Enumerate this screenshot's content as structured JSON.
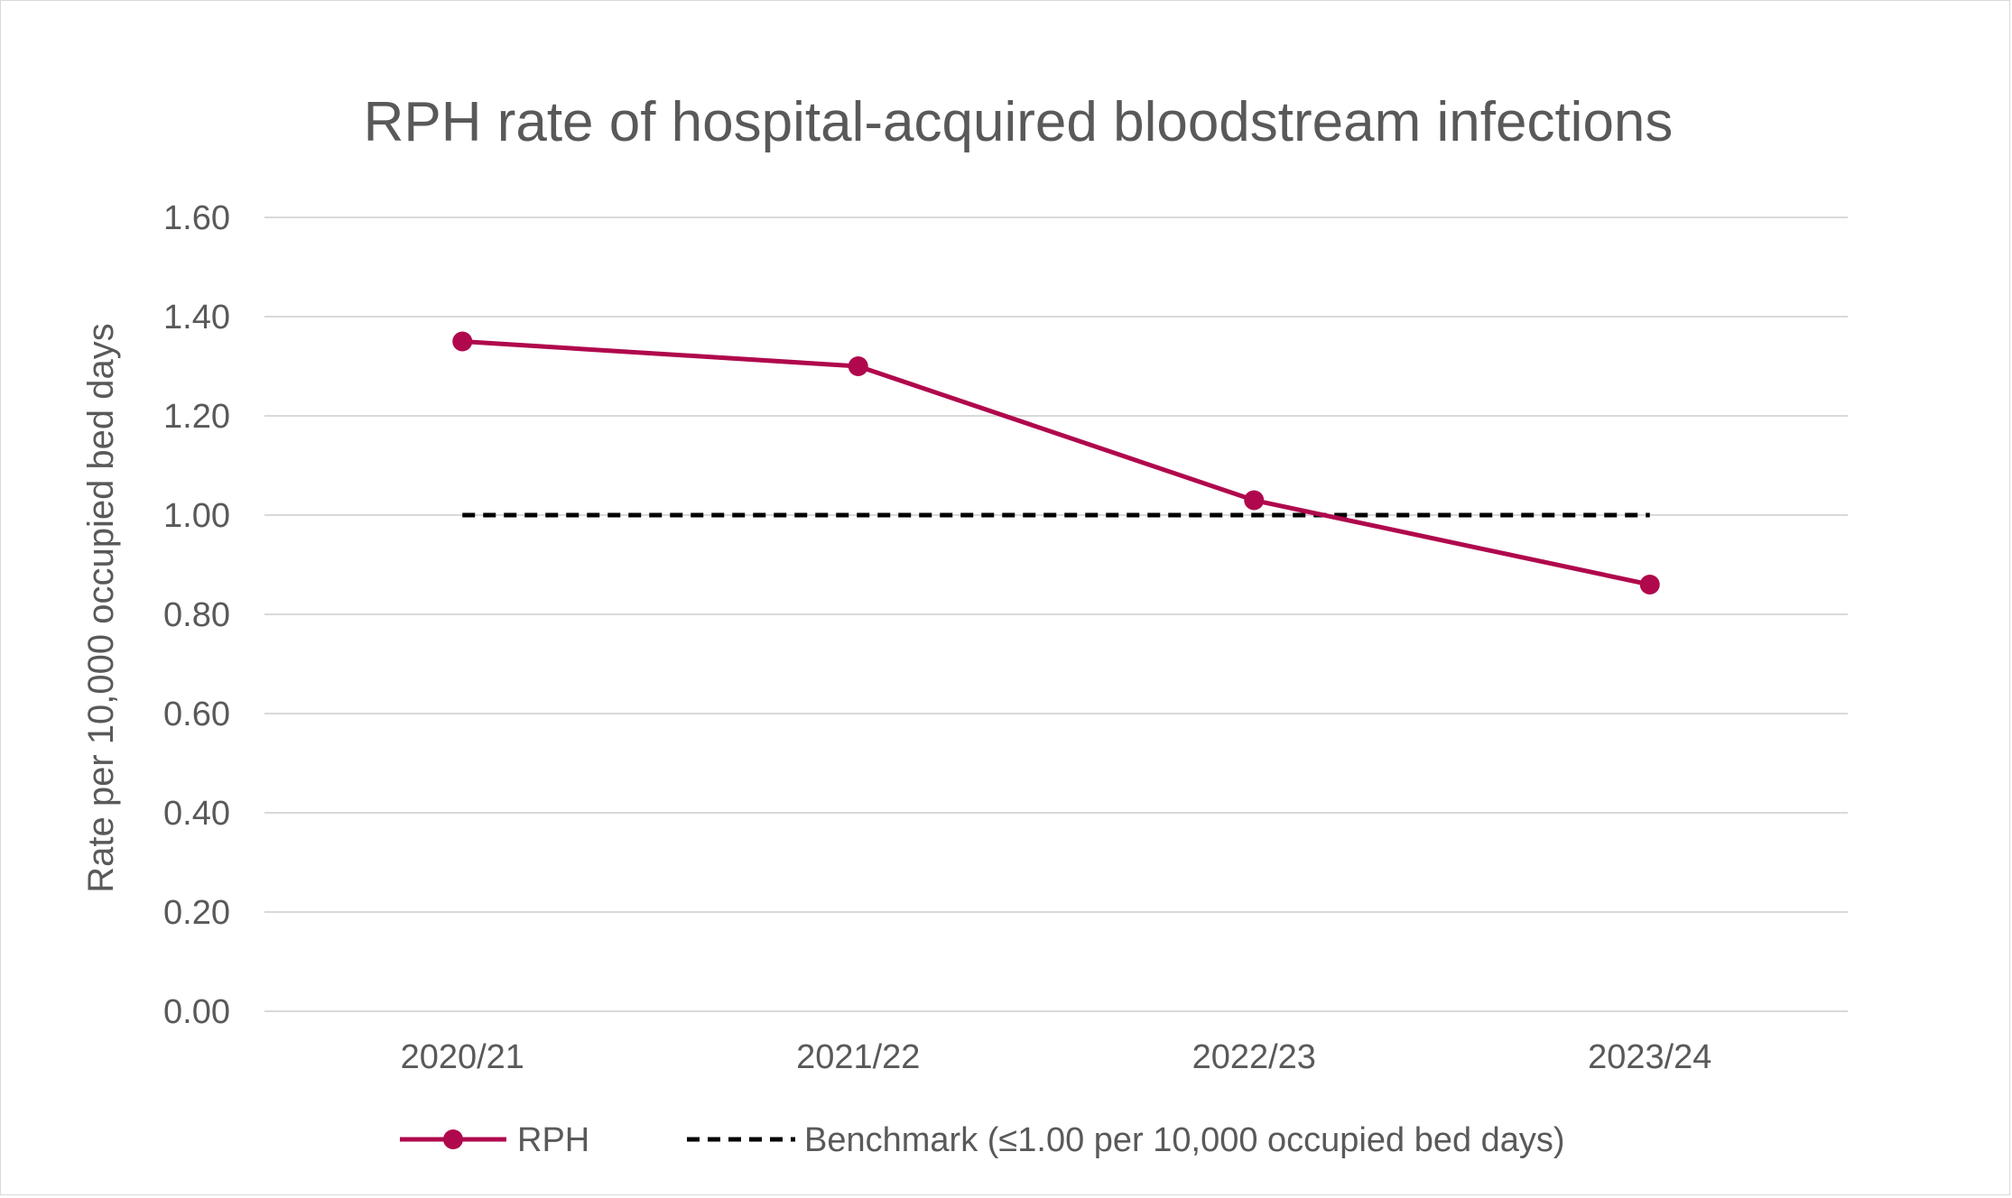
{
  "chart_data": {
    "type": "line",
    "title": "RPH rate of hospital-acquired bloodstream infections",
    "xlabel": "",
    "ylabel": "Rate per 10,000 occupied bed days",
    "categories": [
      "2020/21",
      "2021/22",
      "2022/23",
      "2023/24"
    ],
    "ylim": [
      0,
      1.6
    ],
    "y_ticks": [
      "0.00",
      "0.20",
      "0.40",
      "0.60",
      "0.80",
      "1.00",
      "1.20",
      "1.40",
      "1.60"
    ],
    "grid": true,
    "legend_position": "bottom",
    "series": [
      {
        "name": "RPH",
        "values": [
          1.35,
          1.3,
          1.03,
          0.86
        ],
        "color": "#b0084c",
        "style": "solid",
        "markers": true
      },
      {
        "name": "Benchmark (≤1.00 per 10,000 occupied bed days)",
        "values": [
          1.0,
          1.0,
          1.0,
          1.0
        ],
        "color": "#000000",
        "style": "dashed",
        "markers": false
      }
    ]
  }
}
